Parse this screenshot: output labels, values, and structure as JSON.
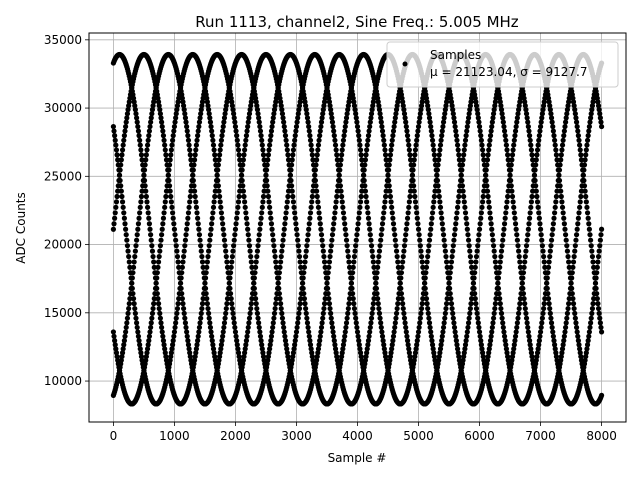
{
  "chart_data": {
    "type": "scatter",
    "title": "Run 1113, channel2, Sine Freq.: 5.005 MHz",
    "xlabel": "Sample #",
    "ylabel": "ADC Counts",
    "xlim": [
      -400,
      8400
    ],
    "ylim": [
      7000,
      35500
    ],
    "xticks": [
      0,
      1000,
      2000,
      3000,
      4000,
      5000,
      6000,
      7000,
      8000
    ],
    "yticks": [
      10000,
      15000,
      20000,
      25000,
      30000,
      35000
    ],
    "xtick_labels": [
      "0",
      "1000",
      "2000",
      "3000",
      "4000",
      "5000",
      "6000",
      "7000",
      "8000"
    ],
    "ytick_labels": [
      "10000",
      "15000",
      "20000",
      "25000",
      "30000",
      "35000"
    ],
    "grid": true,
    "legend": {
      "placement": "top-right",
      "label": "Samples",
      "stats": "μ = 21123.04, σ = 9127.7"
    },
    "series": [
      {
        "name": "Samples",
        "color": "#000000",
        "marker": "circle",
        "model": "sinusoid",
        "mean": 21123.04,
        "amplitude": 12800,
        "period": 2000,
        "phase_offsets": [
          0,
          400,
          800,
          1200,
          1600
        ],
        "x_range": [
          0,
          8000
        ],
        "sample_step": 10
      }
    ]
  }
}
